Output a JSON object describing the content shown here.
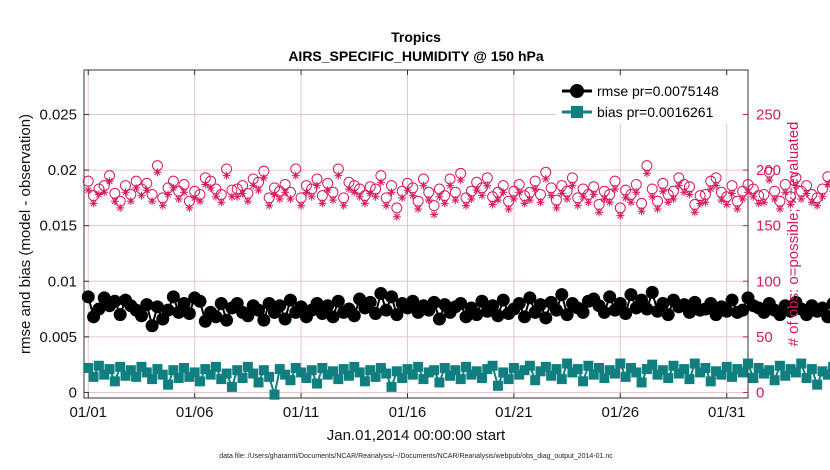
{
  "chart_data": {
    "type": "line",
    "title": "Tropics",
    "subtitle": "AIRS_SPECIFIC_HUMIDITY @ 150 hPa",
    "xlabel": "Jan.01,2014 00:00:00 start",
    "ylabel_left": "rmse and bias (model - observation)",
    "ylabel_right": "# of obs: o=possible; ×=evaluated",
    "footer": "data file: /Users/gharamti/Documents/NCAR/Reanalysis/~/Documents/NCAR/Reanalysis/webpub/obs_diag_output_2014-01.nc",
    "xlim": [
      0.8,
      32.0
    ],
    "ylim_left": [
      -0.0005,
      0.029
    ],
    "ylim_right": [
      -5,
      290
    ],
    "x_ticks": [
      {
        "value": 1,
        "label": "01/01"
      },
      {
        "value": 6,
        "label": "01/06"
      },
      {
        "value": 11,
        "label": "01/11"
      },
      {
        "value": 16,
        "label": "01/16"
      },
      {
        "value": 21,
        "label": "01/21"
      },
      {
        "value": 26,
        "label": "01/26"
      },
      {
        "value": 31,
        "label": "01/31"
      }
    ],
    "y_ticks_left": [
      {
        "value": 0,
        "label": "0"
      },
      {
        "value": 0.005,
        "label": "0.005"
      },
      {
        "value": 0.01,
        "label": "0.01"
      },
      {
        "value": 0.015,
        "label": "0.015"
      },
      {
        "value": 0.02,
        "label": "0.02"
      },
      {
        "value": 0.025,
        "label": "0.025"
      }
    ],
    "y_ticks_right": [
      {
        "value": 0,
        "label": "0"
      },
      {
        "value": 50,
        "label": "50"
      },
      {
        "value": 100,
        "label": "100"
      },
      {
        "value": 150,
        "label": "150"
      },
      {
        "value": 200,
        "label": "200"
      },
      {
        "value": 250,
        "label": "250"
      }
    ],
    "colors": {
      "rmse": "#000000",
      "bias": "#0f7f7f",
      "obs": "#d41a5e",
      "grid": "#e6c3cf",
      "axis": "#333333"
    },
    "series": [
      {
        "name": "rmse",
        "legend": "rmse pr=0.0075148",
        "axis": "left",
        "start": 1.0,
        "step": 0.25,
        "values": [
          0.0086,
          0.0068,
          0.0075,
          0.0085,
          0.0078,
          0.0082,
          0.007,
          0.0083,
          0.0078,
          0.0074,
          0.0069,
          0.0079,
          0.006,
          0.0077,
          0.0066,
          0.0074,
          0.0086,
          0.0072,
          0.008,
          0.0071,
          0.0085,
          0.0082,
          0.0064,
          0.0072,
          0.0068,
          0.008,
          0.0065,
          0.0076,
          0.008,
          0.0072,
          0.0069,
          0.0078,
          0.0074,
          0.0065,
          0.008,
          0.0072,
          0.0078,
          0.0066,
          0.0083,
          0.0072,
          0.0077,
          0.0068,
          0.0074,
          0.008,
          0.0071,
          0.0078,
          0.0068,
          0.0082,
          0.0072,
          0.0075,
          0.0069,
          0.0084,
          0.0076,
          0.0081,
          0.0071,
          0.0089,
          0.0074,
          0.0086,
          0.007,
          0.008,
          0.0076,
          0.0082,
          0.0072,
          0.0078,
          0.0074,
          0.0081,
          0.0066,
          0.0079,
          0.0072,
          0.0077,
          0.008,
          0.0068,
          0.0076,
          0.007,
          0.0082,
          0.0073,
          0.0078,
          0.0069,
          0.0083,
          0.0071,
          0.0075,
          0.008,
          0.0068,
          0.0085,
          0.0072,
          0.0079,
          0.0067,
          0.0081,
          0.0074,
          0.0088,
          0.007,
          0.008,
          0.0076,
          0.0072,
          0.0082,
          0.0084,
          0.0078,
          0.0072,
          0.0086,
          0.0074,
          0.008,
          0.0071,
          0.0088,
          0.0076,
          0.0083,
          0.0075,
          0.009,
          0.0073,
          0.008,
          0.007,
          0.0083,
          0.0077,
          0.0079,
          0.0072,
          0.0081,
          0.0074,
          0.0075,
          0.008,
          0.007,
          0.0077,
          0.0073,
          0.0083,
          0.0072,
          0.0074,
          0.0085,
          0.0078,
          0.0076,
          0.0072,
          0.008,
          0.0074,
          0.007,
          0.0078,
          0.0073,
          0.0081,
          0.0075,
          0.007,
          0.0078,
          0.0073,
          0.0076,
          0.0068,
          0.008,
          0.0072,
          0.0074,
          0.0071,
          0.0078,
          0.0073,
          0.0076,
          0.0074,
          0.0079,
          0.0072,
          0.0077,
          0.0074,
          0.0069,
          0.0075,
          0.0084,
          0.007,
          0.0078,
          0.0086,
          0.007,
          0.0076,
          0.008,
          0.0068,
          0.0079,
          0.0074,
          0.009,
          0.008,
          0.0086,
          0.0075,
          0.0083,
          0.0073,
          0.0092,
          0.0082,
          0.0078,
          0.0084,
          0.0095,
          0.0081,
          0.0076,
          0.0083,
          0.0087,
          0.007,
          0.0078,
          0.008,
          0.0085,
          0.0076,
          0.007,
          0.0079,
          0.0084
        ]
      },
      {
        "name": "bias",
        "legend": "bias pr=0.0016261",
        "axis": "left",
        "start": 1.0,
        "step": 0.25,
        "values": [
          0.0022,
          0.0014,
          0.0024,
          0.0016,
          0.0021,
          0.001,
          0.0023,
          0.0015,
          0.002,
          0.0014,
          0.0023,
          0.0018,
          0.0012,
          0.0021,
          0.0016,
          0.0007,
          0.002,
          0.0013,
          0.0022,
          0.0014,
          0.0018,
          0.001,
          0.0021,
          0.0016,
          0.0023,
          0.0012,
          0.0017,
          0.0005,
          0.002,
          0.0013,
          0.0023,
          0.0017,
          0.0009,
          0.002,
          0.0014,
          -0.0002,
          0.0021,
          0.0016,
          0.0011,
          0.0022,
          0.0018,
          0.0013,
          0.002,
          0.0008,
          0.0022,
          0.0016,
          0.0019,
          0.0012,
          0.0021,
          0.0015,
          0.0023,
          0.0018,
          0.001,
          0.002,
          0.0014,
          0.0022,
          0.0017,
          0.0005,
          0.0019,
          0.0013,
          0.0021,
          0.0016,
          0.0023,
          0.0012,
          0.0018,
          0.002,
          0.0009,
          0.0022,
          0.0015,
          0.002,
          0.0012,
          0.0023,
          0.0016,
          0.0019,
          0.0013,
          0.0021,
          0.0024,
          0.0006,
          0.0018,
          0.0012,
          0.0022,
          0.0016,
          0.002,
          0.0024,
          0.0011,
          0.0019,
          0.0023,
          0.0015,
          0.0021,
          0.0012,
          0.0026,
          0.0018,
          0.0021,
          0.001,
          0.0024,
          0.0016,
          0.0022,
          0.0013,
          0.002,
          0.0017,
          0.0026,
          0.0014,
          0.0022,
          0.0018,
          0.0009,
          0.0021,
          0.0025,
          0.0016,
          0.002,
          0.0013,
          0.0024,
          0.0017,
          0.0021,
          0.0012,
          0.0026,
          0.0018,
          0.0022,
          0.001,
          0.0019,
          0.0016,
          0.0023,
          0.0014,
          0.0021,
          0.0018,
          0.0026,
          0.0013,
          0.0022,
          0.0017,
          0.002,
          0.0011,
          0.0024,
          0.0015,
          0.0021,
          0.0018,
          0.0026,
          0.0013,
          0.0021,
          0.0007,
          0.0019,
          0.0016,
          0.0023,
          0.0013,
          0.002,
          0.0017,
          0.0024,
          0.0012,
          0.0022,
          0.0016,
          0.0019,
          0.001,
          0.0023,
          -0.0003,
          0.0017,
          0.0012,
          0.0021,
          0.0015,
          0.0022,
          0.0013,
          0.0019,
          0.0024,
          0.0016,
          0.0021,
          0.0013,
          0.0023,
          0.0017,
          0.003,
          0.0014,
          0.0021,
          0.0017,
          0.0025,
          0.0013,
          0.0022,
          0.0018,
          0.0028,
          0.0014,
          0.002,
          0.0023,
          0.003,
          0.0016,
          0.0022,
          0.0034,
          0.0019,
          0.0025,
          0.0014,
          0.0022,
          0.0018,
          0.0039,
          0.0015,
          0.0024,
          0.002,
          0.0027,
          0.0017,
          0.0023,
          0.0041
        ]
      },
      {
        "name": "obs_possible",
        "legend": "o=possible",
        "axis": "right",
        "start": 1.0,
        "step": 0.25,
        "values": [
          190,
          177,
          183,
          186,
          195,
          179,
          172,
          186,
          178,
          190,
          183,
          188,
          178,
          204,
          175,
          184,
          190,
          181,
          187,
          172,
          181,
          178,
          193,
          190,
          183,
          178,
          201,
          182,
          183,
          186,
          179,
          192,
          189,
          199,
          175,
          184,
          181,
          187,
          180,
          201,
          175,
          186,
          183,
          192,
          177,
          188,
          180,
          201,
          175,
          189,
          186,
          183,
          177,
          185,
          183,
          195,
          175,
          186,
          166,
          181,
          188,
          184,
          172,
          192,
          180,
          168,
          183,
          177,
          192,
          180,
          197,
          175,
          181,
          189,
          184,
          193,
          176,
          180,
          186,
          172,
          181,
          187,
          177,
          180,
          190,
          178,
          198,
          184,
          173,
          186,
          181,
          193,
          175,
          183,
          178,
          185,
          169,
          181,
          178,
          190,
          166,
          182,
          178,
          187,
          170,
          204,
          183,
          172,
          188,
          178,
          181,
          193,
          187,
          185,
          169,
          177,
          178,
          190,
          193,
          180,
          176,
          186,
          172,
          181,
          187,
          183,
          177,
          178,
          198,
          181,
          172,
          187,
          176,
          193,
          181,
          186,
          178,
          175,
          183,
          194,
          188,
          177,
          181,
          180,
          172,
          189,
          182,
          178,
          186,
          193,
          177,
          181,
          184,
          188,
          190,
          178,
          182,
          204,
          185,
          179,
          180,
          193,
          176,
          187,
          176,
          198,
          180,
          185,
          178,
          197,
          180,
          189,
          178,
          201,
          183,
          179,
          192,
          170,
          184,
          185,
          182,
          172,
          195,
          174,
          189,
          199,
          179,
          185,
          191,
          177,
          196,
          180,
          178
        ]
      },
      {
        "name": "obs_evaluated",
        "legend": "×=evaluated",
        "axis": "right",
        "start": 1.0,
        "step": 0.25,
        "values": [
          182,
          170,
          178,
          180,
          190,
          172,
          166,
          180,
          172,
          184,
          177,
          182,
          172,
          198,
          168,
          178,
          184,
          174,
          180,
          166,
          175,
          172,
          187,
          184,
          176,
          171,
          195,
          176,
          176,
          179,
          172,
          186,
          182,
          193,
          168,
          178,
          174,
          180,
          174,
          195,
          168,
          180,
          176,
          186,
          170,
          182,
          173,
          195,
          168,
          183,
          180,
          176,
          170,
          179,
          176,
          189,
          168,
          180,
          158,
          175,
          182,
          177,
          165,
          186,
          173,
          160,
          176,
          170,
          186,
          173,
          191,
          168,
          174,
          182,
          177,
          186,
          169,
          173,
          180,
          165,
          174,
          180,
          170,
          173,
          183,
          171,
          192,
          177,
          166,
          179,
          174,
          186,
          168,
          176,
          171,
          178,
          162,
          174,
          171,
          183,
          159,
          175,
          171,
          180,
          163,
          197,
          176,
          165,
          181,
          171,
          174,
          186,
          180,
          178,
          162,
          170,
          171,
          183,
          186,
          173,
          169,
          179,
          165,
          174,
          180,
          176,
          170,
          171,
          191,
          174,
          165,
          180,
          169,
          186,
          174,
          179,
          171,
          168,
          176,
          187,
          181,
          170,
          174,
          173,
          165,
          182,
          175,
          171,
          179,
          186,
          170,
          174,
          177,
          181,
          183,
          171,
          175,
          197,
          178,
          172,
          173,
          186,
          169,
          180,
          169,
          191,
          173,
          178,
          171,
          190,
          173,
          182,
          171,
          194,
          176,
          172,
          185,
          163,
          177,
          178,
          175,
          165,
          188,
          167,
          182,
          192,
          172,
          178,
          184,
          170,
          189,
          173,
          171
        ]
      }
    ]
  }
}
